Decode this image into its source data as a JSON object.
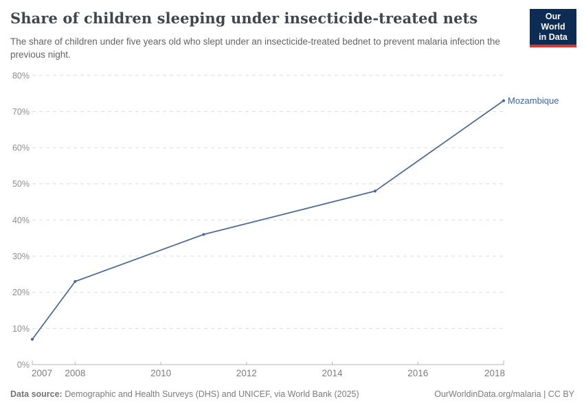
{
  "header": {
    "title": "Share of children sleeping under insecticide-treated nets",
    "subtitle": "The share of children under five years old who slept under an insecticide-treated bednet to prevent malaria infection the previous night.",
    "logo": {
      "line1": "Our World",
      "line2": "in Data",
      "bg_color": "#0d2c54",
      "accent_color": "#d83731"
    }
  },
  "footer": {
    "source_label": "Data source:",
    "source_text": " Demographic and Health Surveys (DHS) and UNICEF, via World Bank (2025)",
    "credit": "OurWorldinData.org/malaria | CC BY"
  },
  "chart_data": {
    "type": "line",
    "title": "Share of children sleeping under insecticide-treated nets",
    "xlabel": "",
    "ylabel": "",
    "xlim": [
      2007,
      2018
    ],
    "ylim": [
      0,
      80
    ],
    "yticks": [
      0,
      10,
      20,
      30,
      40,
      50,
      60,
      70,
      80
    ],
    "ytick_suffix": "%",
    "xticks": [
      2007,
      2008,
      2010,
      2012,
      2014,
      2016,
      2018
    ],
    "grid": "horizontal-dashed",
    "legend_position": "end-of-line-label",
    "series": [
      {
        "name": "Mozambique",
        "color": "#4c6a9c",
        "label_color": "#3d63a8",
        "x": [
          2007,
          2008,
          2011,
          2015,
          2018
        ],
        "values": [
          7,
          23,
          36,
          48,
          73
        ]
      }
    ]
  }
}
